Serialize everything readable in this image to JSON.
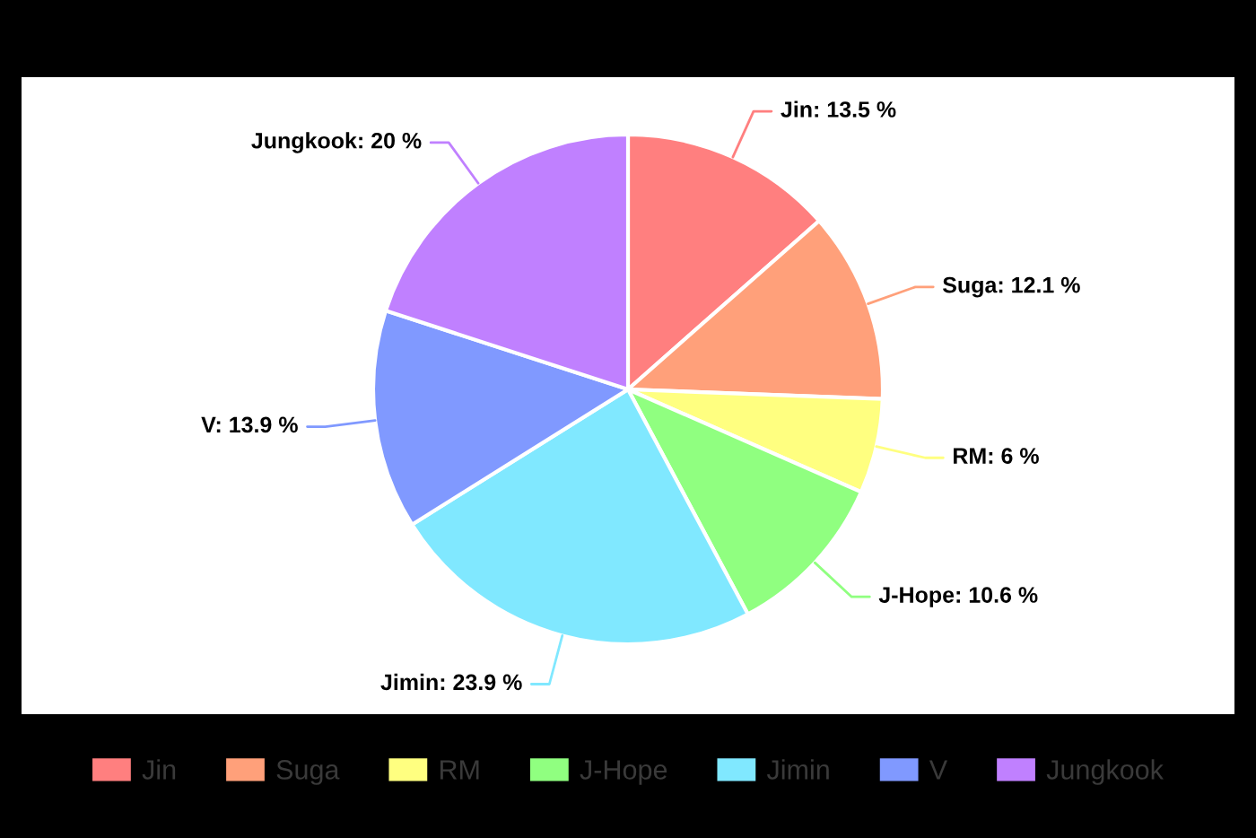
{
  "chart_data": {
    "type": "pie",
    "categories": [
      "Jin",
      "Suga",
      "RM",
      "J-Hope",
      "Jimin",
      "V",
      "Jungkook"
    ],
    "values": [
      13.5,
      12.1,
      6,
      10.6,
      23.9,
      13.9,
      20
    ],
    "colors": [
      "#ff7f7f",
      "#ffa07a",
      "#ffff80",
      "#90ff80",
      "#80e8ff",
      "#8099ff",
      "#c080ff"
    ],
    "value_labels": [
      "Jin: 13.5 %",
      "Suga: 12.1 %",
      "RM: 6 %",
      "J-Hope: 10.6 %",
      "Jimin: 23.9 %",
      "V: 13.9 %",
      "Jungkook: 20 %"
    ],
    "legend": "bottom"
  }
}
